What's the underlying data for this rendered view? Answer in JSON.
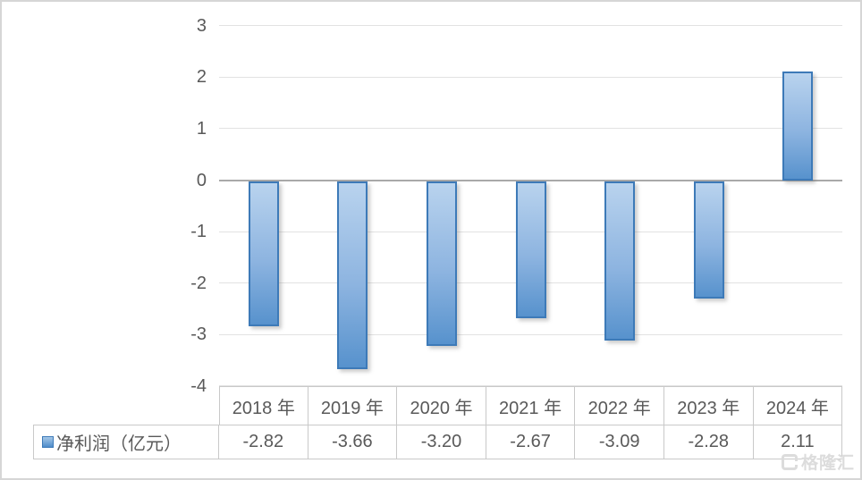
{
  "chart_data": {
    "type": "bar",
    "title": "",
    "series_label": "净利润（亿元）",
    "categories": [
      "2018 年",
      "2019 年",
      "2020 年",
      "2021 年",
      "2022 年",
      "2023 年",
      "2024 年"
    ],
    "values": [
      -2.82,
      -3.66,
      -3.2,
      -2.67,
      -3.09,
      -2.28,
      2.11
    ],
    "values_display": [
      "-2.82",
      "-3.66",
      "-3.20",
      "-2.67",
      "-3.09",
      "-2.28",
      "2.11"
    ],
    "y_ticks": [
      3,
      2,
      1,
      0,
      -1,
      -2,
      -3,
      -4
    ],
    "ylim": [
      -4,
      3
    ],
    "grid": true,
    "legend_position": "table-left",
    "colors": {
      "bar_gradient_top": "#b9d3ee",
      "bar_gradient_bottom": "#5792cd",
      "bar_border": "#3d7ab8",
      "gridline": "#e2e2e2",
      "zero_line": "#a9a9a9",
      "text": "#595959",
      "table_border": "#c9c9c9"
    }
  },
  "watermark": {
    "logo": "gelonghui-logo",
    "text": "格隆汇"
  }
}
